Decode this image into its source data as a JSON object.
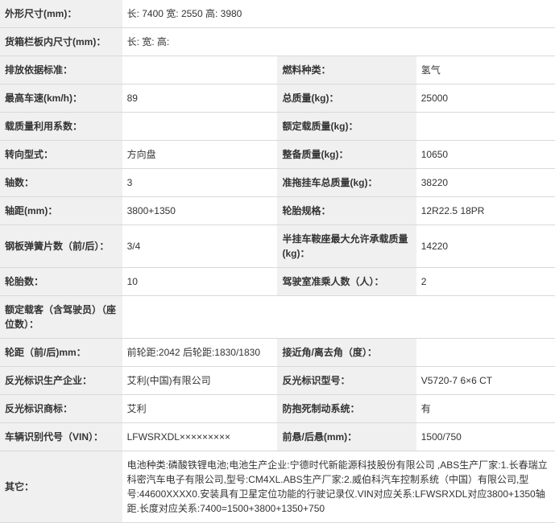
{
  "rows": [
    {
      "type": "full",
      "label": "外形尺寸(mm)：",
      "value": "长: 7400 宽: 2550 高: 3980"
    },
    {
      "type": "full",
      "label": "货箱栏板内尺寸(mm)：",
      "value": "长:  宽:  高: "
    },
    {
      "type": "pair",
      "l1": "排放依据标准：",
      "v1": "",
      "l2": "燃料种类：",
      "v2": "氢气"
    },
    {
      "type": "pair",
      "l1": "最高车速(km/h)：",
      "v1": "89",
      "l2": "总质量(kg)：",
      "v2": "25000"
    },
    {
      "type": "pair",
      "l1": "载质量利用系数：",
      "v1": "",
      "l2": "额定载质量(kg)：",
      "v2": ""
    },
    {
      "type": "pair",
      "l1": "转向型式：",
      "v1": "方向盘",
      "l2": "整备质量(kg)：",
      "v2": "10650"
    },
    {
      "type": "pair",
      "l1": "轴数：",
      "v1": "3",
      "l2": "准拖挂车总质量(kg)：",
      "v2": "38220"
    },
    {
      "type": "pair",
      "l1": "轴距(mm)：",
      "v1": "3800+1350",
      "l2": "轮胎规格：",
      "v2": "12R22.5 18PR"
    },
    {
      "type": "pair",
      "l1": "钢板弹簧片数（前/后）：",
      "v1": "3/4",
      "l2": "半挂车鞍座最大允许承载质量(kg)：",
      "v2": "14220"
    },
    {
      "type": "pair",
      "l1": "轮胎数：",
      "v1": "10",
      "l2": "驾驶室准乘人数（人）：",
      "v2": "2"
    },
    {
      "type": "full",
      "label": "额定载客（含驾驶员）（座位数）：",
      "value": ""
    },
    {
      "type": "pair",
      "l1": "轮距（前/后)mm：",
      "v1": "前轮距:2042 后轮距:1830/1830",
      "l2": "接近角/离去角（度）：",
      "v2": ""
    },
    {
      "type": "pair",
      "l1": "反光标识生产企业：",
      "v1": "艾利(中国)有限公司",
      "l2": "反光标识型号：",
      "v2": "V5720-7 6×6 CT"
    },
    {
      "type": "pair",
      "l1": "反光标识商标：",
      "v1": "艾利",
      "l2": "防抱死制动系统：",
      "v2": "有"
    },
    {
      "type": "pair",
      "l1": "车辆识别代号（VIN）：",
      "v1": "LFWSRXDL×××××××××",
      "l2": "前悬/后悬(mm)：",
      "v2": "1500/750"
    },
    {
      "type": "full",
      "label": "其它：",
      "value": "电池种类:磷酸铁锂电池;电池生产企业:宁德时代新能源科技股份有限公司 ,ABS生产厂家:1.长春瑞立科密汽车电子有限公司,型号:CM4XL.ABS生产厂家:2.威伯科汽车控制系统（中国）有限公司,型号:44600XXXX0.安装具有卫星定位功能的行驶记录仪.VIN对应关系:LFWSRXDL对应3800+1350轴距.长度对应关系:7400=1500+3800+1350+750"
    }
  ],
  "colors": {
    "label_bg": "#f0f0f0",
    "value_bg": "#ffffff",
    "border": "#d9d9d9",
    "text": "#333333"
  },
  "font_size": 12
}
